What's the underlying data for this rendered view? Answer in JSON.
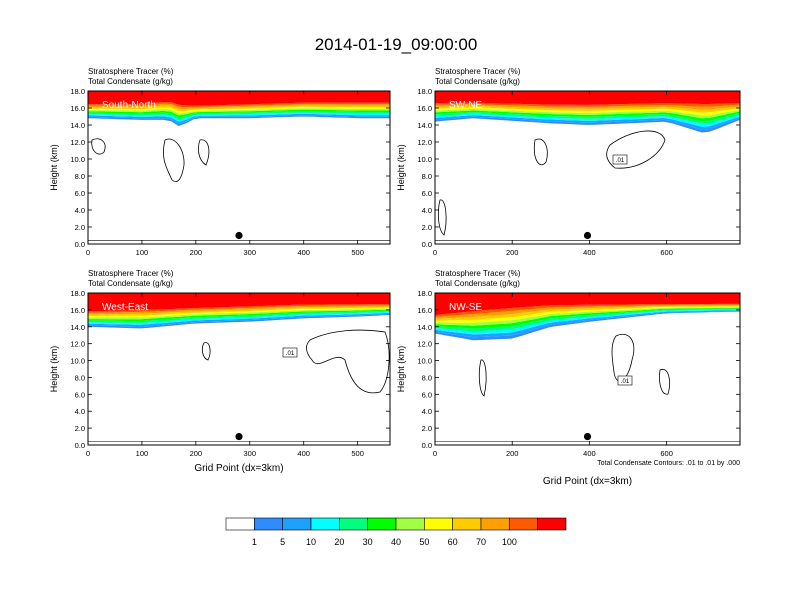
{
  "figure": {
    "title": "2014-01-19_09:00:00",
    "footnote": "Total Condensate Contours: .01 to .01 by .000"
  },
  "colorbar": {
    "levels": [
      "1",
      "5",
      "10",
      "20",
      "30",
      "40",
      "50",
      "60",
      "70",
      "100"
    ],
    "colors": [
      "#ffffff",
      "#2f8cff",
      "#1ea0ff",
      "#00ffff",
      "#00ff80",
      "#00ff00",
      "#a0ff40",
      "#ffff00",
      "#ffcc00",
      "#ffa000",
      "#ff5a00",
      "#ff0000"
    ]
  },
  "chart_data": [
    {
      "type": "heatmap",
      "panel": "South-North",
      "title_lines": [
        "Stratosphere Tracer   (%)",
        "Total Condensate   (g/kg)"
      ],
      "ylabel": "Height (km)",
      "xlabel": "",
      "xlim": [
        0,
        560
      ],
      "ylim": [
        0,
        18
      ],
      "xticks": [
        "0",
        "100",
        "200",
        "300",
        "400",
        "500"
      ],
      "yticks": [
        "0.0",
        "2.0",
        "4.0",
        "6.0",
        "8.0",
        "10.0",
        "12.0",
        "14.0",
        "16.0",
        "18.0"
      ],
      "dot": {
        "x": 280,
        "y": 1.0
      },
      "tracer_profile": {
        "x": [
          0,
          100,
          150,
          170,
          200,
          300,
          400,
          500,
          560
        ],
        "top_100": [
          16.6,
          16.6,
          17.0,
          16.6,
          16.4,
          16.6,
          16.8,
          16.8,
          16.8
        ],
        "bottom_1": [
          14.8,
          14.6,
          14.6,
          13.8,
          14.8,
          14.8,
          15.0,
          14.8,
          14.8
        ]
      },
      "contour_level": ".01",
      "contour_boxes": []
    },
    {
      "type": "heatmap",
      "panel": "SW-NE",
      "title_lines": [
        "Stratosphere Tracer   (%)",
        "Total Condensate   (g/kg)"
      ],
      "ylabel": "Height (km)",
      "xlabel": "",
      "xlim": [
        0,
        790
      ],
      "ylim": [
        0,
        18
      ],
      "xticks": [
        "0",
        "200",
        "400",
        "600"
      ],
      "yticks": [
        "0.0",
        "2.0",
        "4.0",
        "6.0",
        "8.0",
        "10.0",
        "12.0",
        "14.0",
        "16.0",
        "18.0"
      ],
      "dot": {
        "x": 395,
        "y": 1.0
      },
      "tracer_profile": {
        "x": [
          0,
          100,
          300,
          400,
          600,
          700,
          790
        ],
        "top_100": [
          16.8,
          16.8,
          16.6,
          16.6,
          16.8,
          16.8,
          16.8
        ],
        "bottom_1": [
          14.4,
          14.8,
          14.2,
          14.0,
          14.4,
          13.0,
          14.6
        ]
      },
      "contour_level": ".01",
      "contour_boxes": [
        ".01"
      ]
    },
    {
      "type": "heatmap",
      "panel": "West-East",
      "title_lines": [
        "Stratosphere Tracer   (%)",
        "Total Condensate   (g/kg)"
      ],
      "ylabel": "Height (km)",
      "xlabel": "Grid Point (dx=3km)",
      "xlim": [
        0,
        560
      ],
      "ylim": [
        0,
        18
      ],
      "xticks": [
        "0",
        "100",
        "200",
        "300",
        "400",
        "500"
      ],
      "yticks": [
        "0.0",
        "2.0",
        "4.0",
        "6.0",
        "8.0",
        "10.0",
        "12.0",
        "14.0",
        "16.0",
        "18.0"
      ],
      "dot": {
        "x": 280,
        "y": 1.0
      },
      "tracer_profile": {
        "x": [
          0,
          100,
          200,
          300,
          400,
          500,
          560
        ],
        "top_100": [
          16.0,
          16.2,
          16.4,
          16.6,
          16.8,
          16.8,
          16.8
        ],
        "bottom_1": [
          14.0,
          13.8,
          14.4,
          14.6,
          15.0,
          15.2,
          15.4
        ]
      },
      "contour_level": ".01",
      "contour_boxes": [
        ".01"
      ]
    },
    {
      "type": "heatmap",
      "panel": "NW-SE",
      "title_lines": [
        "Stratosphere Tracer   (%)",
        "Total Condensate   (g/kg)"
      ],
      "ylabel": "Height (km)",
      "xlabel": "Grid Point (dx=3km)",
      "xlim": [
        0,
        790
      ],
      "ylim": [
        0,
        18
      ],
      "xticks": [
        "0",
        "200",
        "400",
        "600"
      ],
      "yticks": [
        "0.0",
        "2.0",
        "4.0",
        "6.0",
        "8.0",
        "10.0",
        "12.0",
        "14.0",
        "16.0",
        "18.0"
      ],
      "dot": {
        "x": 395,
        "y": 1.0
      },
      "tracer_profile": {
        "x": [
          0,
          100,
          200,
          300,
          400,
          600,
          790
        ],
        "top_100": [
          15.6,
          16.2,
          16.6,
          16.8,
          16.8,
          16.8,
          16.8
        ],
        "bottom_1": [
          13.2,
          12.4,
          12.6,
          14.0,
          14.6,
          15.6,
          15.8
        ]
      },
      "contour_level": ".01",
      "contour_boxes": [
        ".01"
      ]
    }
  ]
}
